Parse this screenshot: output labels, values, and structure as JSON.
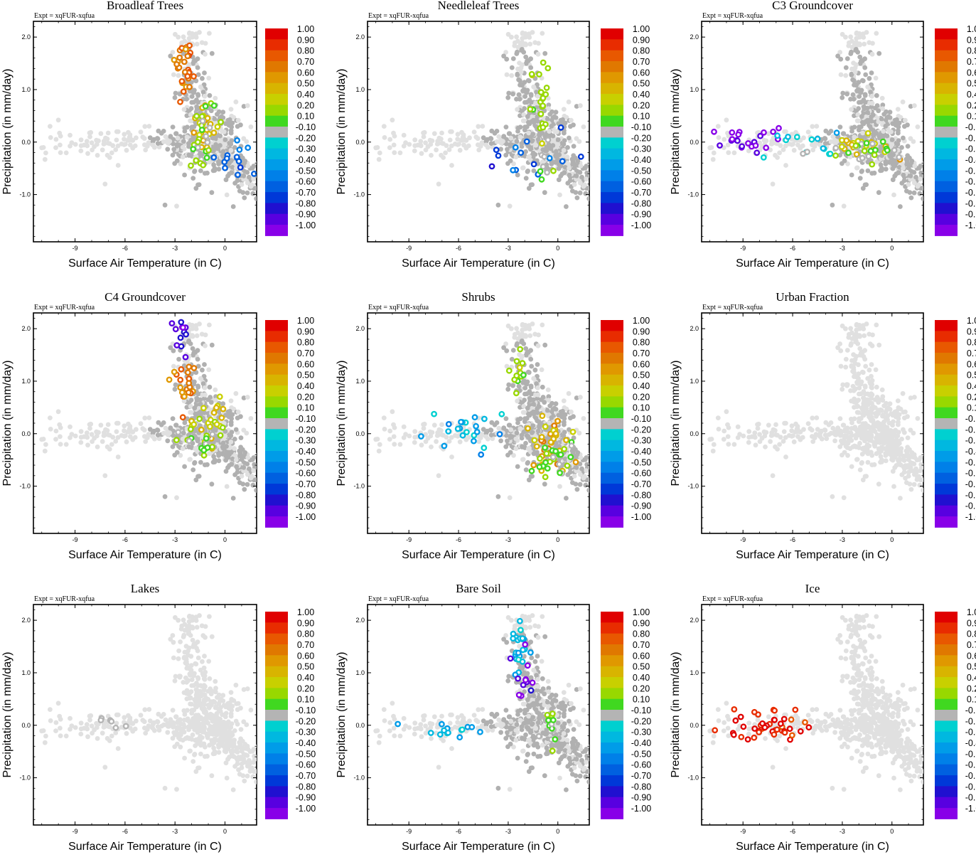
{
  "figure": {
    "expt_label": "Expt = xqFUR-xqfua",
    "x_label": "Surface Air Temperature (in C)",
    "y_label": "Precipitation (in mm/day)",
    "x_ticks": [
      "-9",
      "-6",
      "-3",
      "0"
    ],
    "y_ticks": [
      "2.0",
      "1.0",
      "0.0",
      "-1.0"
    ],
    "background_point_color": "#e0e0e0",
    "neutral_point_color": "#b0b0b0"
  },
  "colorbar": {
    "labels": [
      "1.00",
      "0.90",
      "0.80",
      "0.70",
      "0.60",
      "0.50",
      "0.40",
      "0.20",
      "0.10",
      "-0.10",
      "-0.20",
      "-0.30",
      "-0.40",
      "-0.50",
      "-0.60",
      "-0.70",
      "-0.80",
      "-0.90",
      "-1.00"
    ],
    "colors": [
      "#e00000",
      "#e82c00",
      "#e85800",
      "#e07800",
      "#e09800",
      "#d8b400",
      "#c8d000",
      "#98d800",
      "#40d820",
      "#b4b4b4",
      "#00d0d0",
      "#00b8e0",
      "#009ce8",
      "#0080e8",
      "#0060e0",
      "#0038d8",
      "#2010d0",
      "#5800e0",
      "#8800e8"
    ]
  },
  "chart_data": [
    {
      "type": "scatter",
      "title": "Broadleaf Trees",
      "xlim": [
        -11.5,
        1.9
      ],
      "ylim": [
        -1.9,
        2.3
      ],
      "xlabel": "Surface Air Temperature (in C)",
      "ylabel": "Precipitation (in mm/day)",
      "color_scale": [
        -1,
        1
      ],
      "highlight_clusters": [
        {
          "value": 0.8,
          "center": [
            -2.5,
            1.5
          ],
          "spread": [
            0.5,
            0.45
          ],
          "count": 28
        },
        {
          "value": 0.5,
          "center": [
            -1.2,
            0.3
          ],
          "spread": [
            0.7,
            0.35
          ],
          "count": 20
        },
        {
          "value": 0.15,
          "center": [
            -1.5,
            0.0
          ],
          "spread": [
            0.9,
            0.5
          ],
          "count": 25
        },
        {
          "value": -0.55,
          "center": [
            0.3,
            -0.3
          ],
          "spread": [
            0.9,
            0.45
          ],
          "count": 14
        }
      ]
    },
    {
      "type": "scatter",
      "title": "Needleleaf Trees",
      "xlim": [
        -11.5,
        1.9
      ],
      "ylim": [
        -1.9,
        2.3
      ],
      "xlabel": "Surface Air Temperature (in C)",
      "ylabel": "Precipitation (in mm/day)",
      "color_scale": [
        -1,
        1
      ],
      "highlight_clusters": [
        {
          "value": 0.3,
          "center": [
            -1.0,
            0.7
          ],
          "spread": [
            0.6,
            0.7
          ],
          "count": 22
        },
        {
          "value": -0.6,
          "center": [
            -2.0,
            -0.3
          ],
          "spread": [
            2.2,
            0.4
          ],
          "count": 14
        },
        {
          "value": 0.15,
          "center": [
            -0.9,
            -0.4
          ],
          "spread": [
            0.4,
            0.4
          ],
          "count": 8
        }
      ]
    },
    {
      "type": "scatter",
      "title": "C3 Groundcover",
      "xlim": [
        -11.5,
        1.9
      ],
      "ylim": [
        -1.9,
        2.3
      ],
      "xlabel": "Surface Air Temperature (in C)",
      "ylabel": "Precipitation (in mm/day)",
      "color_scale": [
        -1,
        1
      ],
      "highlight_clusters": [
        {
          "value": -0.9,
          "center": [
            -8.5,
            0.05
          ],
          "spread": [
            1.6,
            0.25
          ],
          "count": 22
        },
        {
          "value": -0.2,
          "center": [
            -5.0,
            -0.1
          ],
          "spread": [
            2.5,
            0.3
          ],
          "count": 16
        },
        {
          "value": 0.5,
          "center": [
            -1.8,
            -0.05
          ],
          "spread": [
            1.4,
            0.2
          ],
          "count": 22
        },
        {
          "value": 0.15,
          "center": [
            -1.5,
            -0.15
          ],
          "spread": [
            1.3,
            0.25
          ],
          "count": 22
        }
      ]
    },
    {
      "type": "scatter",
      "title": "C4 Groundcover",
      "xlim": [
        -11.5,
        1.9
      ],
      "ylim": [
        -1.9,
        2.3
      ],
      "xlabel": "Surface Air Temperature (in C)",
      "ylabel": "Precipitation (in mm/day)",
      "color_scale": [
        -1,
        1
      ],
      "highlight_clusters": [
        {
          "value": -0.85,
          "center": [
            -2.5,
            1.95
          ],
          "spread": [
            0.5,
            0.3
          ],
          "count": 12
        },
        {
          "value": 0.75,
          "center": [
            -2.3,
            1.0
          ],
          "spread": [
            0.8,
            0.4
          ],
          "count": 20
        },
        {
          "value": 0.5,
          "center": [
            -1.0,
            0.2
          ],
          "spread": [
            0.8,
            0.4
          ],
          "count": 22
        },
        {
          "value": 0.15,
          "center": [
            -1.5,
            -0.1
          ],
          "spread": [
            1.0,
            0.4
          ],
          "count": 20
        }
      ]
    },
    {
      "type": "scatter",
      "title": "Shrubs",
      "xlim": [
        -11.5,
        1.9
      ],
      "ylim": [
        -1.9,
        2.3
      ],
      "xlabel": "Surface Air Temperature (in C)",
      "ylabel": "Precipitation (in mm/day)",
      "color_scale": [
        -1,
        1
      ],
      "highlight_clusters": [
        {
          "value": -0.3,
          "center": [
            -5.5,
            0.0
          ],
          "spread": [
            2.5,
            0.3
          ],
          "count": 22
        },
        {
          "value": 0.3,
          "center": [
            -2.5,
            1.3
          ],
          "spread": [
            0.6,
            0.4
          ],
          "count": 12
        },
        {
          "value": 0.6,
          "center": [
            -0.5,
            -0.15
          ],
          "spread": [
            1.0,
            0.45
          ],
          "count": 35
        },
        {
          "value": 0.15,
          "center": [
            -0.3,
            -0.5
          ],
          "spread": [
            1.0,
            0.35
          ],
          "count": 25
        }
      ]
    },
    {
      "type": "scatter",
      "title": "Urban Fraction",
      "xlim": [
        -11.5,
        1.9
      ],
      "ylim": [
        -1.9,
        2.3
      ],
      "xlabel": "Surface Air Temperature (in C)",
      "ylabel": "Precipitation (in mm/day)",
      "color_scale": [
        -1,
        1
      ],
      "highlight_clusters": []
    },
    {
      "type": "scatter",
      "title": "Lakes",
      "xlim": [
        -11.5,
        1.9
      ],
      "ylim": [
        -1.9,
        2.3
      ],
      "xlabel": "Surface Air Temperature (in C)",
      "ylabel": "Precipitation (in mm/day)",
      "color_scale": [
        -1,
        1
      ],
      "highlight_clusters": [
        {
          "value": 0.0,
          "center": [
            -7.5,
            0.1
          ],
          "spread": [
            2.0,
            0.15
          ],
          "count": 6
        }
      ]
    },
    {
      "type": "scatter",
      "title": "Bare Soil",
      "xlim": [
        -11.5,
        1.9
      ],
      "ylim": [
        -1.9,
        2.3
      ],
      "xlabel": "Surface Air Temperature (in C)",
      "ylabel": "Precipitation (in mm/day)",
      "color_scale": [
        -1,
        1
      ],
      "highlight_clusters": [
        {
          "value": -0.25,
          "center": [
            -2.4,
            1.5
          ],
          "spread": [
            0.5,
            0.55
          ],
          "count": 22
        },
        {
          "value": -0.85,
          "center": [
            -2.0,
            0.9
          ],
          "spread": [
            0.7,
            0.4
          ],
          "count": 12
        },
        {
          "value": -0.3,
          "center": [
            -7.0,
            -0.1
          ],
          "spread": [
            2.0,
            0.15
          ],
          "count": 14
        },
        {
          "value": 0.15,
          "center": [
            -0.3,
            -0.15
          ],
          "spread": [
            0.6,
            0.3
          ],
          "count": 14
        }
      ]
    },
    {
      "type": "scatter",
      "title": "Ice",
      "xlim": [
        -11.5,
        1.9
      ],
      "ylim": [
        -1.9,
        2.3
      ],
      "xlabel": "Surface Air Temperature (in C)",
      "ylabel": "Precipitation (in mm/day)",
      "color_scale": [
        -1,
        1
      ],
      "highlight_clusters": [
        {
          "value": 1.0,
          "center": [
            -7.5,
            0.0
          ],
          "spread": [
            2.3,
            0.25
          ],
          "count": 45
        }
      ]
    }
  ]
}
